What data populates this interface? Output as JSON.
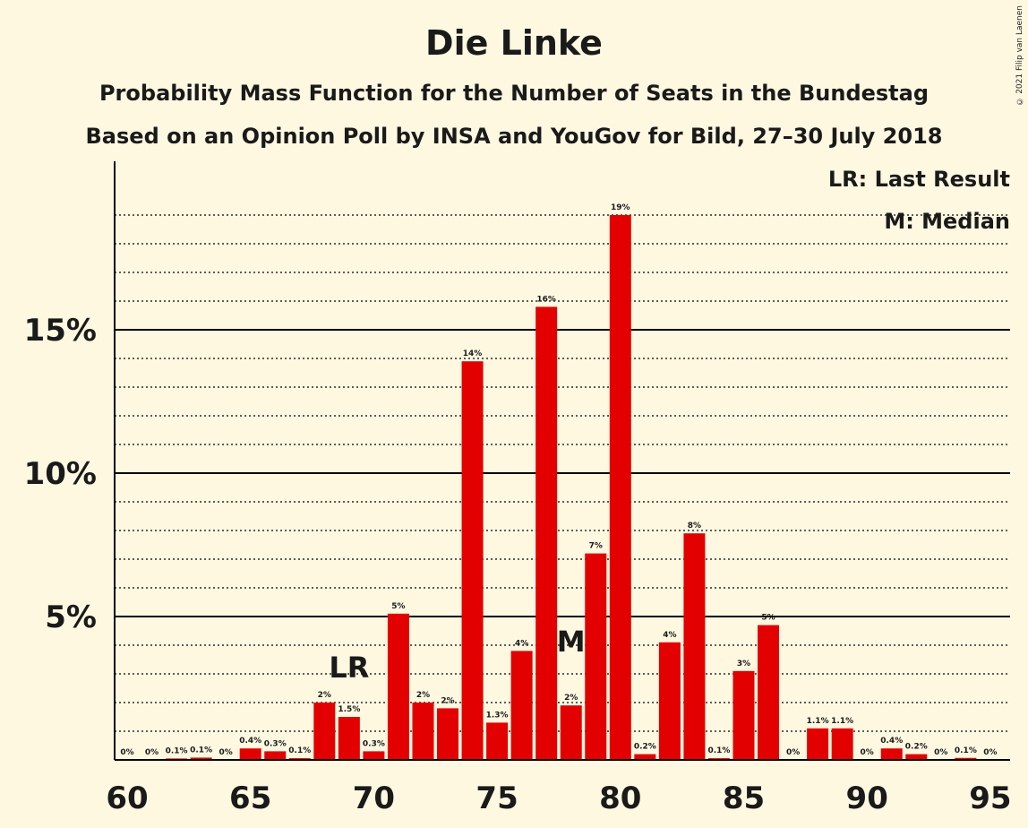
{
  "chart_data": {
    "type": "bar",
    "title": "Die Linke",
    "subtitle": "Probability Mass Function for the Number of Seats in the Bundestag",
    "subtitle2": "Based on an Opinion Poll by INSA and YouGov for Bild, 27–30 July 2018",
    "copyright": "© 2021 Filip van Laenen",
    "legend": {
      "lr": "LR: Last Result",
      "m": "M: Median",
      "placement": "top-right"
    },
    "x": [
      60,
      61,
      62,
      63,
      64,
      65,
      66,
      67,
      68,
      69,
      70,
      71,
      72,
      73,
      74,
      75,
      76,
      77,
      78,
      79,
      80,
      81,
      82,
      83,
      84,
      85,
      86,
      87,
      88,
      89,
      90,
      91,
      92,
      93,
      94,
      95
    ],
    "values": [
      0,
      0,
      0.05,
      0.08,
      0,
      0.4,
      0.3,
      0.06,
      2.0,
      1.5,
      0.3,
      5.1,
      2.0,
      1.8,
      13.9,
      1.3,
      3.8,
      15.8,
      1.9,
      7.2,
      19.0,
      0.2,
      4.1,
      7.9,
      0.06,
      3.1,
      4.7,
      0,
      1.1,
      1.1,
      0,
      0.4,
      0.2,
      0,
      0.07,
      0
    ],
    "labels": [
      "0%",
      "0%",
      "0.1%",
      "0.1%",
      "0%",
      "0.4%",
      "0.3%",
      "0.1%",
      "2%",
      "1.5%",
      "0.3%",
      "5%",
      "2%",
      "2%",
      "14%",
      "1.3%",
      "4%",
      "16%",
      "2%",
      "7%",
      "19%",
      "0.2%",
      "4%",
      "8%",
      "0.1%",
      "3%",
      "5%",
      "0%",
      "1.1%",
      "1.1%",
      "0%",
      "0.4%",
      "0.2%",
      "0%",
      "0.1%",
      "0%"
    ],
    "x_ticks": [
      "60",
      "65",
      "70",
      "75",
      "80",
      "85",
      "90",
      "95"
    ],
    "y_ticks": [
      "5%",
      "10%",
      "15%"
    ],
    "ylim": [
      0,
      20.5
    ],
    "last_result": {
      "x": 69,
      "label": "LR"
    },
    "median": {
      "x": 78,
      "label": "M"
    },
    "bar_color": "#e30000",
    "grid": true
  }
}
